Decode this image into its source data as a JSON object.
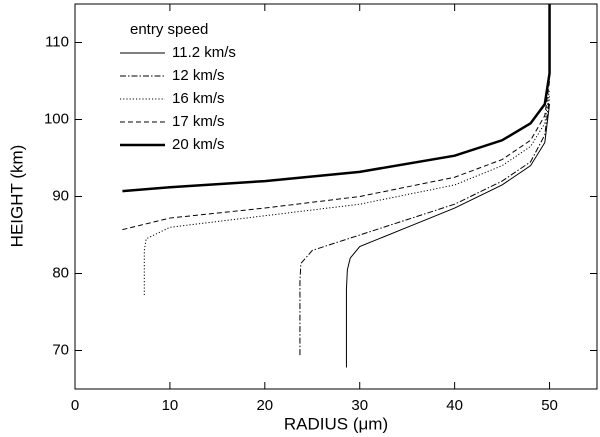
{
  "chart_data": {
    "type": "line",
    "xlabel": "RADIUS (μm)",
    "ylabel": "HEIGHT (km)",
    "legend_title": "entry speed",
    "legend": "upper left",
    "xlim": [
      0,
      55
    ],
    "ylim": [
      65,
      115
    ],
    "xticks": [
      0,
      10,
      20,
      30,
      40,
      50
    ],
    "yticks": [
      70,
      80,
      90,
      100,
      110
    ],
    "series": [
      {
        "name": "11.2 km/s",
        "color": "#000000",
        "line_style": "solid",
        "linewidth": 1,
        "x": [
          28.6,
          28.6,
          28.7,
          29,
          30,
          35,
          40,
          45,
          48,
          49.5,
          50
        ],
        "values": [
          67.8,
          78,
          80.5,
          82,
          83.5,
          86,
          88.5,
          91.5,
          94,
          97,
          102
        ]
      },
      {
        "name": "12 km/s",
        "color": "#000000",
        "line_style": "dashdot",
        "linewidth": 1,
        "x": [
          23.7,
          23.7,
          23.8,
          25,
          30,
          35,
          40,
          45,
          48,
          49.5,
          50
        ],
        "values": [
          69.4,
          79,
          81.3,
          83,
          85,
          87,
          89,
          92,
          94.5,
          98,
          103
        ]
      },
      {
        "name": "16 km/s",
        "color": "#000000",
        "line_style": "dotted",
        "linewidth": 1,
        "x": [
          7.3,
          7.3,
          7.5,
          10,
          20,
          30,
          40,
          45,
          48,
          49.5,
          50
        ],
        "values": [
          77.2,
          83,
          84.5,
          86,
          87.5,
          89,
          91.5,
          94,
          96.5,
          99.5,
          104
        ]
      },
      {
        "name": "17 km/s",
        "color": "#000000",
        "line_style": "dashed",
        "linewidth": 1,
        "x": [
          5,
          10,
          20,
          30,
          40,
          45,
          48,
          49.5,
          50
        ],
        "values": [
          85.7,
          87.2,
          88.5,
          90,
          92.5,
          94.8,
          97.3,
          100.5,
          105
        ]
      },
      {
        "name": "20 km/s",
        "color": "#000000",
        "line_style": "solid",
        "linewidth": 2.5,
        "x": [
          5,
          10,
          20,
          30,
          40,
          45,
          48,
          49.5,
          50,
          50
        ],
        "values": [
          90.7,
          91.2,
          92,
          93.2,
          95.3,
          97.3,
          99.5,
          102,
          106,
          115
        ]
      }
    ]
  }
}
